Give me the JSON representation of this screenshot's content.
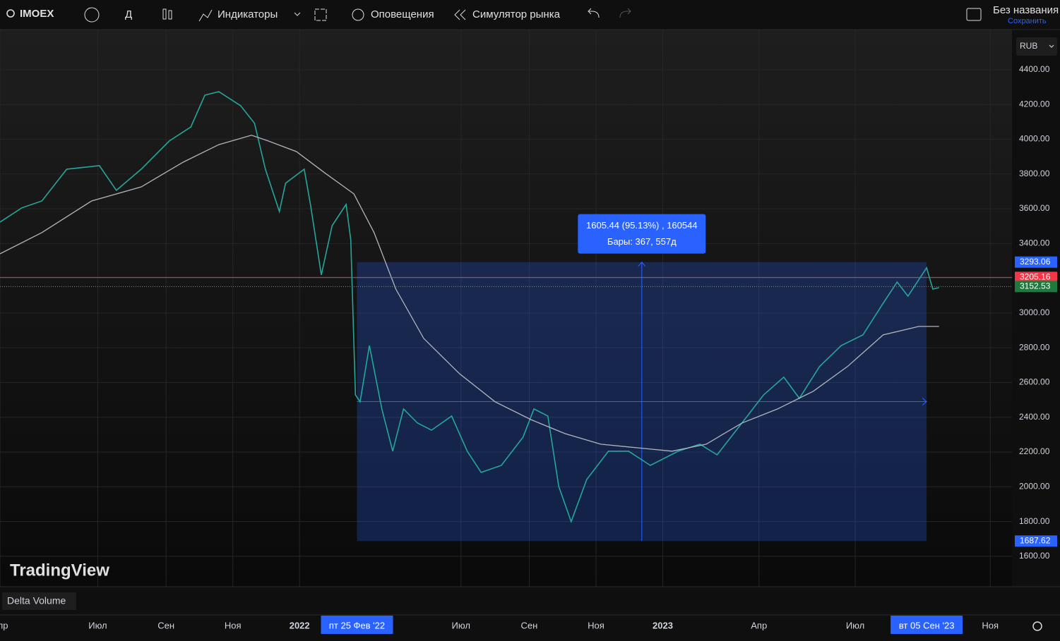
{
  "toolbar": {
    "symbol": "IMOEX",
    "interval": "Д",
    "indicators": "Индикаторы",
    "alerts": "Оповещения",
    "replay": "Симулятор рынка",
    "layout_name": "Без названия",
    "save": "Сохранить"
  },
  "currency": "RUB",
  "watermark": "TradingView",
  "indicator_pane": "Delta Volume",
  "chart_data": {
    "type": "line",
    "series": [
      {
        "color": "#26a69a",
        "x": [
          0,
          14,
          27,
          43,
          64,
          75,
          91,
          109,
          123,
          132,
          141,
          155,
          164,
          171,
          180,
          184,
          196,
          200,
          207,
          214,
          223,
          226,
          229,
          232,
          238,
          246,
          253,
          260,
          269,
          278,
          291,
          301,
          310,
          323,
          337,
          344,
          353,
          360,
          368,
          378,
          392,
          405,
          419,
          437,
          451,
          462,
          478,
          492,
          505,
          515,
          528,
          542,
          556,
          569,
          578,
          585,
          597,
          601,
          605
        ],
        "values": [
          3523,
          3605,
          3645,
          3828,
          3848,
          3706,
          3828,
          3990,
          4071,
          4254,
          4274,
          4193,
          4092,
          3828,
          3584,
          3747,
          3828,
          3625,
          3219,
          3503,
          3625,
          3422,
          2529,
          2489,
          2813,
          2448,
          2205,
          2448,
          2367,
          2326,
          2407,
          2205,
          2083,
          2123,
          2286,
          2448,
          2407,
          2002,
          1799,
          2042,
          2205,
          2205,
          2123,
          2205,
          2245,
          2184,
          2367,
          2529,
          2631,
          2509,
          2692,
          2813,
          2874,
          3057,
          3178,
          3097,
          3260,
          3138,
          3146
        ]
      },
      {
        "color": "#b2b5be",
        "x": [
          0,
          27,
          59,
          91,
          118,
          141,
          162,
          173,
          191,
          209,
          228,
          241,
          255,
          273,
          296,
          319,
          342,
          364,
          387,
          410,
          433,
          455,
          478,
          501,
          524,
          546,
          569,
          592,
          605
        ],
        "values": [
          3341,
          3463,
          3645,
          3726,
          3868,
          3969,
          4023,
          3990,
          3929,
          3808,
          3686,
          3463,
          3138,
          2854,
          2651,
          2489,
          2387,
          2306,
          2245,
          2225,
          2205,
          2245,
          2367,
          2448,
          2550,
          2692,
          2874,
          2923,
          2923
        ]
      }
    ],
    "xlim": [
      0,
      652
    ],
    "ylim": [
      1425,
      4631
    ],
    "yticks": [
      {
        "value": 1600,
        "label": "1600.00"
      },
      {
        "value": 1800,
        "label": "1800.00"
      },
      {
        "value": 2000,
        "label": "2000.00"
      },
      {
        "value": 2200,
        "label": "2200.00"
      },
      {
        "value": 2400,
        "label": "2400.00"
      },
      {
        "value": 2600,
        "label": "2600.00"
      },
      {
        "value": 2800,
        "label": "2800.00"
      },
      {
        "value": 3000,
        "label": "3000.00"
      },
      {
        "value": 3200,
        "label": "3200.00"
      },
      {
        "value": 3400,
        "label": "3400.00"
      },
      {
        "value": 3600,
        "label": "3600.00"
      },
      {
        "value": 3800,
        "label": "3800.00"
      },
      {
        "value": 4000,
        "label": "4000.00"
      },
      {
        "value": 4200,
        "label": "4200.00"
      },
      {
        "value": 4400,
        "label": "4400.00"
      }
    ],
    "xticks": [
      {
        "value": 0,
        "label": "Апр"
      },
      {
        "value": 63,
        "label": "Июл"
      },
      {
        "value": 107,
        "label": "Сен"
      },
      {
        "value": 150,
        "label": "Ноя"
      },
      {
        "value": 193,
        "label": "2022"
      },
      {
        "value": 297,
        "label": "Июл"
      },
      {
        "value": 341,
        "label": "Сен"
      },
      {
        "value": 384,
        "label": "Ноя"
      },
      {
        "value": 427,
        "label": "2023"
      },
      {
        "value": 489,
        "label": "Апр"
      },
      {
        "value": 551,
        "label": "Июл"
      },
      {
        "value": 638,
        "label": "Ноя"
      }
    ],
    "grid": true,
    "price_labels": [
      {
        "value": 3293.06,
        "color": "#2962ff"
      },
      {
        "value": 3205.16,
        "color": "#f23645"
      },
      {
        "value": 3152.53,
        "color": "#1e7a3c"
      },
      {
        "value": 1687.62,
        "color": "#2962ff"
      }
    ],
    "last_price": 3205.16,
    "prev_close": 3152.53,
    "measure": {
      "x_start": 230,
      "x_end": 597,
      "y_start": 1687.62,
      "y_end": 3293.06,
      "x_start_label": "пт 25 Фев '22",
      "x_end_label": "вт 05 Сен '23",
      "label_1": "1605.44 (95.13%) , 160544",
      "label_2": "Бары: 367, 557д"
    }
  }
}
